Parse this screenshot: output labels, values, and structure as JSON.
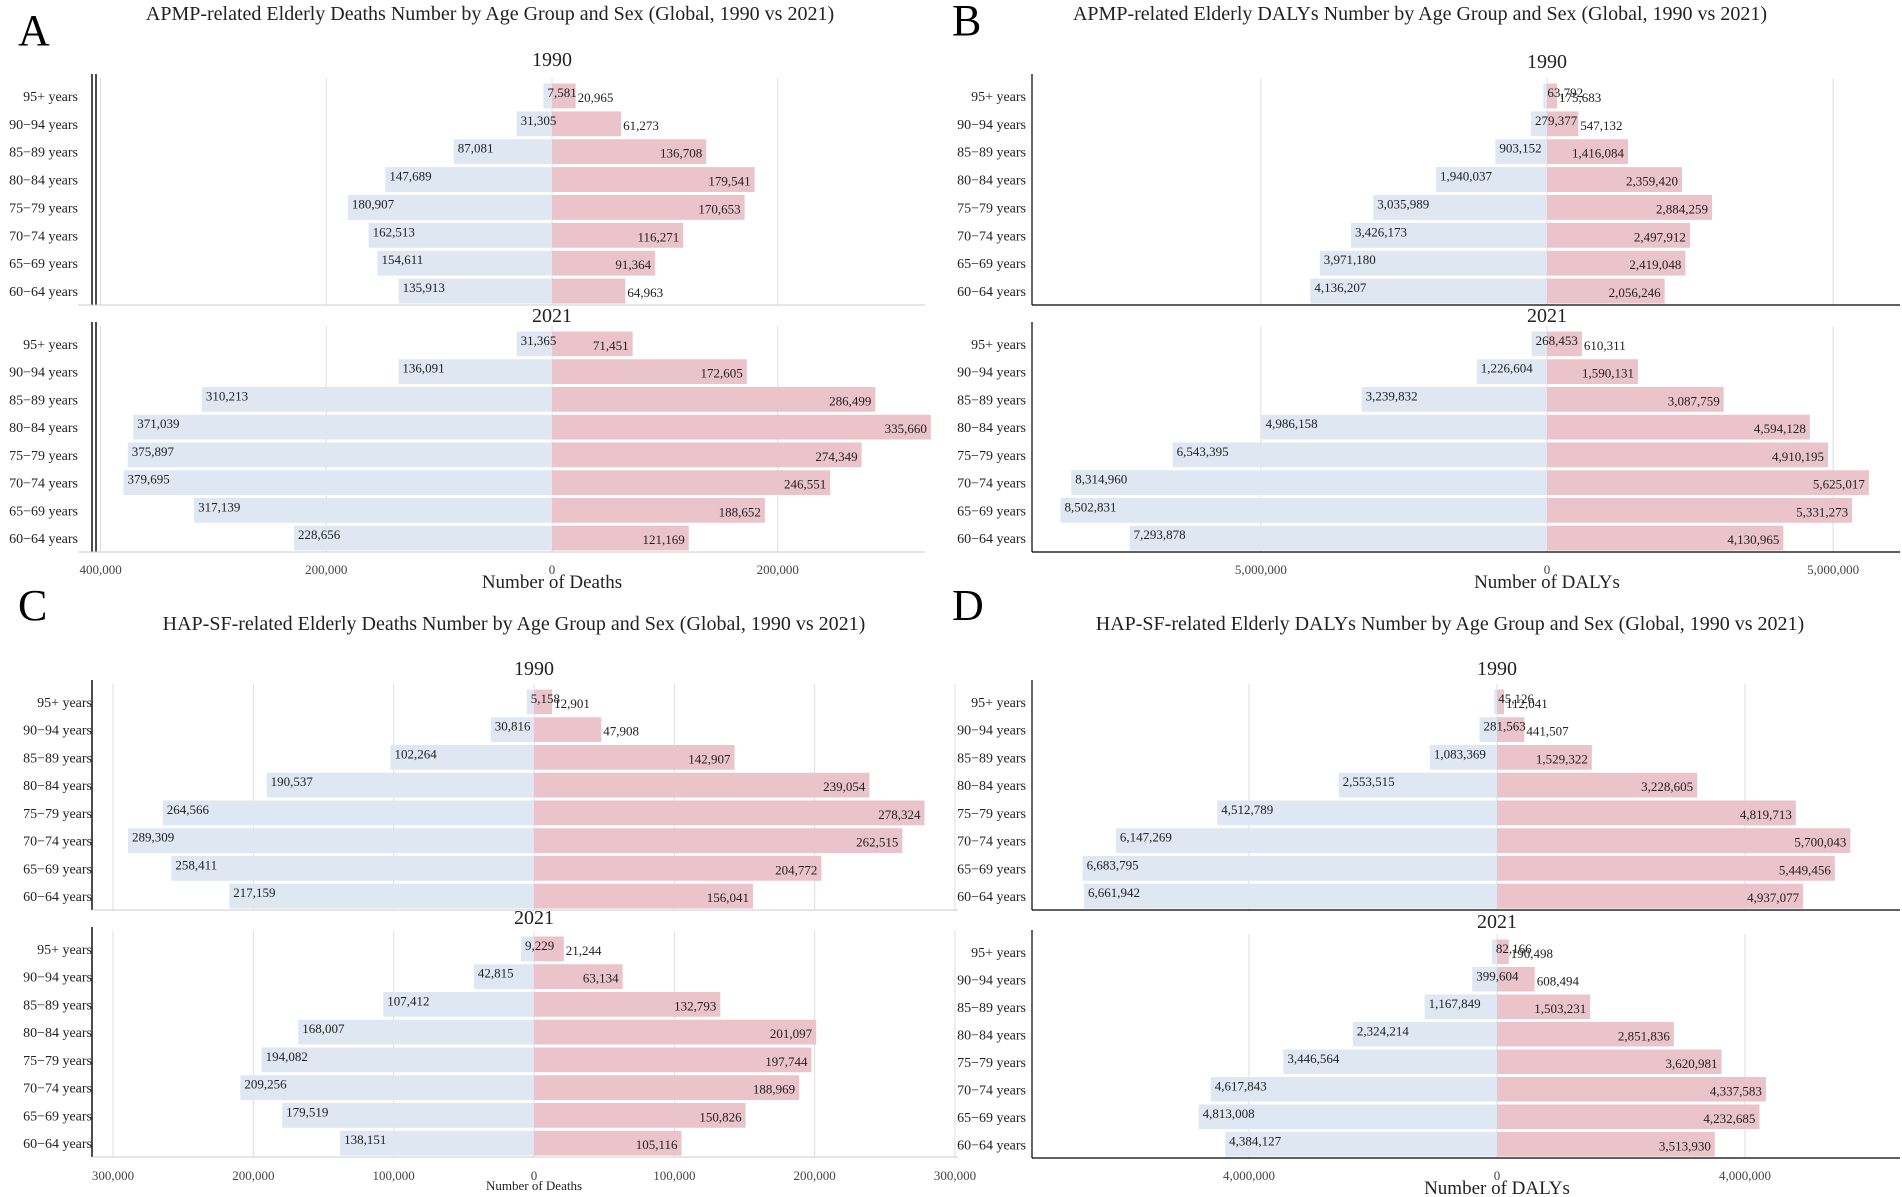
{
  "colors": {
    "male": "#dfe7f2",
    "female": "#ebc3cb",
    "grid": "#dddddd",
    "axis": "#000000"
  },
  "chart_data": [
    {
      "type": "bar",
      "letter": "A",
      "title": "APMP-related Elderly Deaths Number by Age Group and Sex (Global, 1990 vs 2021)",
      "xlabel": "Number of Deaths",
      "categories": [
        "95+ years",
        "90−94 years",
        "85−89 years",
        "80−84 years",
        "75−79 years",
        "70−74 years",
        "65−69 years",
        "60−64 years"
      ],
      "xlim": [
        -420000,
        330000
      ],
      "ticks": [
        -400000,
        -200000,
        0,
        200000
      ],
      "tick_labels": [
        "400,000",
        "200,000",
        "0",
        "200,000"
      ],
      "groups": [
        {
          "year": "1990",
          "left_values": [
            7581,
            31305,
            87081,
            147689,
            180907,
            162513,
            154611,
            135913
          ],
          "right_values": [
            20965,
            61273,
            136708,
            179541,
            170653,
            116271,
            91364,
            64963
          ],
          "left_labels": [
            "7,581",
            "31,305",
            "87,081",
            "147,689",
            "180,907",
            "162,513",
            "154,611",
            "135,913"
          ],
          "right_labels": [
            "20,965",
            "61,273",
            "136,708",
            "179,541",
            "170,653",
            "116,271",
            "91,364",
            "64,963"
          ]
        },
        {
          "year": "2021",
          "left_values": [
            31365,
            136091,
            310213,
            371039,
            375897,
            379695,
            317139,
            228656
          ],
          "right_values": [
            71451,
            172605,
            286499,
            335660,
            274349,
            246551,
            188652,
            121169
          ],
          "left_labels": [
            "31,365",
            "136,091",
            "310,213",
            "371,039",
            "375,897",
            "379,695",
            "317,139",
            "228,656"
          ],
          "right_labels": [
            "71,451",
            "172,605",
            "286,499",
            "335,660",
            "274,349",
            "246,551",
            "188,652",
            "121,169"
          ]
        }
      ]
    },
    {
      "type": "bar",
      "letter": "B",
      "title": "APMP-related Elderly DALYs Number by Age Group and Sex (Global, 1990 vs 2021)",
      "xlabel": "Number of DALYs",
      "categories": [
        "95+ years",
        "90−94 years",
        "85−89 years",
        "80−84 years",
        "75−79 years",
        "70−74 years",
        "65−69 years",
        "60−64 years"
      ],
      "xlim": [
        -9000000,
        5800000
      ],
      "ticks": [
        -5000000,
        0,
        5000000
      ],
      "tick_labels": [
        "5,000,000",
        "0",
        "5,000,000"
      ],
      "groups": [
        {
          "year": "1990",
          "left_values": [
            63792,
            279377,
            903152,
            1940037,
            3035989,
            3426173,
            3971180,
            4136207
          ],
          "right_values": [
            175683,
            547132,
            1416084,
            2359420,
            2884259,
            2497912,
            2419048,
            2056246
          ],
          "left_labels": [
            "63,792",
            "279,377",
            "903,152",
            "1,940,037",
            "3,035,989",
            "3,426,173",
            "3,971,180",
            "4,136,207"
          ],
          "right_labels": [
            "175,683",
            "547,132",
            "1,416,084",
            "2,359,420",
            "2,884,259",
            "2,497,912",
            "2,419,048",
            "2,056,246"
          ]
        },
        {
          "year": "2021",
          "left_values": [
            268453,
            1226604,
            3239832,
            4986158,
            6543395,
            8314960,
            8502831,
            7293878
          ],
          "right_values": [
            610311,
            1590131,
            3087759,
            4594128,
            4910195,
            5625017,
            5331273,
            4130965
          ],
          "left_labels": [
            "268,453",
            "1,226,604",
            "3,239,832",
            "4,986,158",
            "6,543,395",
            "8,314,960",
            "8,502,831",
            "7,293,878"
          ],
          "right_labels": [
            "610,311",
            "1,590,131",
            "3,087,759",
            "4,594,128",
            "4,910,195",
            "5,625,017",
            "5,331,273",
            "4,130,965"
          ]
        }
      ]
    },
    {
      "type": "bar",
      "letter": "C",
      "title": "HAP-SF-related Elderly Deaths Number by Age Group and Sex (Global, 1990 vs 2021)",
      "xlabel": "Number of Deaths",
      "categories": [
        "95+ years",
        "90−94 years",
        "85−89 years",
        "80−84 years",
        "75−79 years",
        "70−74 years",
        "65−69 years",
        "60−64 years"
      ],
      "xlim": [
        -315000,
        300000
      ],
      "ticks": [
        -300000,
        -200000,
        -100000,
        0,
        100000,
        200000,
        300000
      ],
      "tick_labels": [
        "300,000",
        "200,000",
        "100,000",
        "0",
        "100,000",
        "200,000",
        "300,000"
      ],
      "groups": [
        {
          "year": "1990",
          "left_values": [
            5158,
            30816,
            102264,
            190537,
            264566,
            289309,
            258411,
            217159
          ],
          "right_values": [
            12901,
            47908,
            142907,
            239054,
            278324,
            262515,
            204772,
            156041
          ],
          "left_labels": [
            "5,158",
            "30,816",
            "102,264",
            "190,537",
            "264,566",
            "289,309",
            "258,411",
            "217,159"
          ],
          "right_labels": [
            "12,901",
            "47,908",
            "142,907",
            "239,054",
            "278,324",
            "262,515",
            "204,772",
            "156,041"
          ]
        },
        {
          "year": "2021",
          "left_values": [
            9229,
            42815,
            107412,
            168007,
            194082,
            209256,
            179519,
            138151
          ],
          "right_values": [
            21244,
            63134,
            132793,
            201097,
            197744,
            188969,
            150826,
            105116
          ],
          "left_labels": [
            "9,229",
            "42,815",
            "107,412",
            "168,007",
            "194,082",
            "209,256",
            "179,519",
            "138,151"
          ],
          "right_labels": [
            "21,244",
            "63,134",
            "132,793",
            "201,097",
            "197,744",
            "188,969",
            "150,826",
            "105,116"
          ]
        }
      ]
    },
    {
      "type": "bar",
      "letter": "D",
      "title": "HAP-SF-related Elderly DALYs Number by Age Group and Sex (Global, 1990 vs 2021)",
      "xlabel": "Number of DALYs",
      "categories": [
        "95+ years",
        "90−94 years",
        "85−89 years",
        "80−84 years",
        "75−79 years",
        "70−74 years",
        "65−69 years",
        "60−64 years"
      ],
      "xlim": [
        -7000000,
        6500000
      ],
      "ticks": [
        -4000000,
        0,
        4000000
      ],
      "tick_labels": [
        "4,000,000",
        "0",
        "4,000,000"
      ],
      "groups": [
        {
          "year": "1990",
          "left_values": [
            45126,
            281563,
            1083369,
            2553515,
            4512789,
            6147269,
            6683795,
            6661942
          ],
          "right_values": [
            112041,
            441507,
            1529322,
            3228605,
            4819713,
            5700043,
            5449456,
            4937077
          ],
          "left_labels": [
            "45,126",
            "281,563",
            "1,083,369",
            "2,553,515",
            "4,512,789",
            "6,147,269",
            "6,683,795",
            "6,661,942"
          ],
          "right_labels": [
            "112,041",
            "441,507",
            "1,529,322",
            "3,228,605",
            "4,819,713",
            "5,700,043",
            "5,449,456",
            "4,937,077"
          ]
        },
        {
          "year": "2021",
          "left_values": [
            82166,
            399604,
            1167849,
            2324214,
            3446564,
            4617843,
            4813008,
            4384127
          ],
          "right_values": [
            190498,
            608494,
            1503231,
            2851836,
            3620981,
            4337583,
            4232685,
            3513930
          ],
          "left_labels": [
            "82,166",
            "399,604",
            "1,167,849",
            "2,324,214",
            "3,446,564",
            "4,617,843",
            "4,813,008",
            "4,384,127"
          ],
          "right_labels": [
            "190,498",
            "608,494",
            "1,503,231",
            "2,851,836",
            "3,620,981",
            "4,337,583",
            "4,232,685",
            "3,513,930"
          ]
        }
      ]
    }
  ]
}
